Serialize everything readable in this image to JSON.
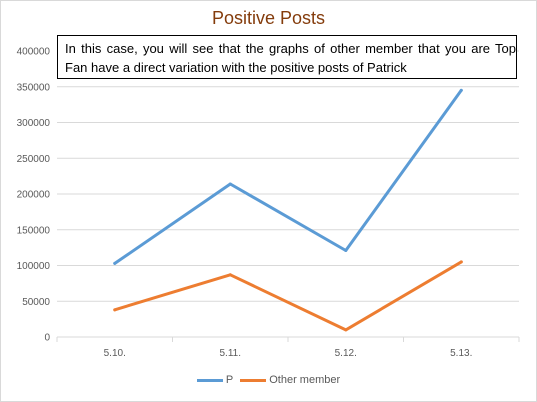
{
  "chart_data": {
    "type": "line",
    "title": "Positive Posts",
    "xlabel": "",
    "ylabel": "",
    "categories": [
      "5.10.",
      "5.11.",
      "5.12.",
      "5.13."
    ],
    "ylim": [
      0,
      400000
    ],
    "yticks": [
      0,
      50000,
      100000,
      150000,
      200000,
      250000,
      300000,
      350000,
      400000
    ],
    "grid": true,
    "legend_position": "bottom",
    "series": [
      {
        "name": "P",
        "color": "#5b9bd5",
        "values": [
          103000,
          214000,
          121000,
          345000
        ]
      },
      {
        "name": "Other member",
        "color": "#ed7d31",
        "values": [
          38000,
          87000,
          10000,
          105000
        ]
      }
    ],
    "annotation": "In this case, you will see that the graphs of other member that you are Top Fan have a direct variation with the positive posts of Patrick"
  }
}
